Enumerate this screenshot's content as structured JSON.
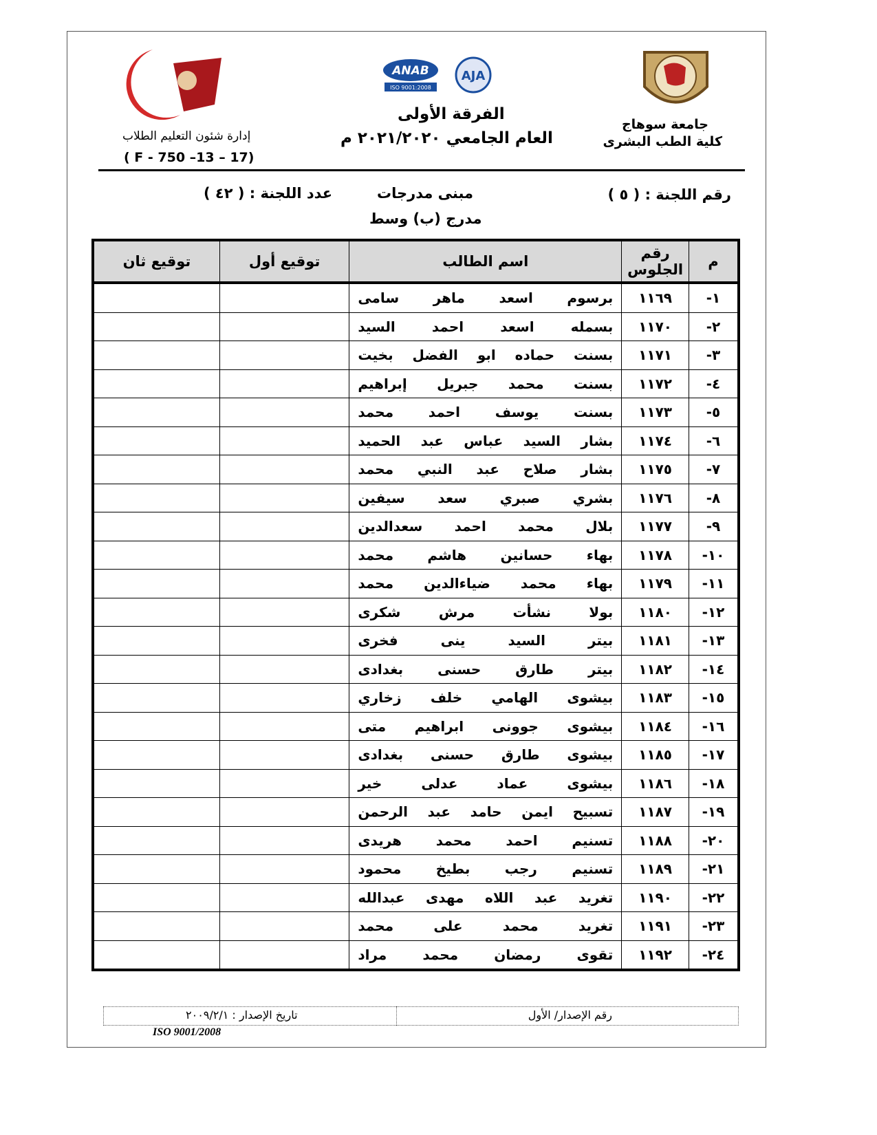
{
  "header": {
    "university": "جامعة سوهاج",
    "faculty": "كلية الطب البشرى",
    "department": "إدارة شئون التعليم الطلاب",
    "form_code": "( F - 750 –13 – 17)",
    "year_level": "الفرقة الأولى",
    "academic_year": "العام الجامعي ٢٠٢١/٢٠٢٠ م",
    "logos": {
      "anab": "ANAB",
      "anab_sub": "ISO 9001:2008",
      "aja": "AJA"
    }
  },
  "committee": {
    "number": "رقم اللجنة : ( ٥ )",
    "building": "مبنى مدرجات",
    "hall": "مدرج (ب) وسط",
    "count": "عدد اللجنة : ( ٤٢ )"
  },
  "table": {
    "columns": [
      "م",
      "رقم الجلوس",
      "اسم الطالب",
      "توقيع أول",
      "توقيع ثان"
    ],
    "rows": [
      [
        "١-",
        "١١٦٩",
        "برسوم اسعد ماهر سامى"
      ],
      [
        "٢-",
        "١١٧٠",
        "بسمله اسعد احمد السيد"
      ],
      [
        "٣-",
        "١١٧١",
        "بسنت حماده ابو الفضل بخيت"
      ],
      [
        "٤-",
        "١١٧٢",
        "بسنت محمد جبريل إبراهيم"
      ],
      [
        "٥-",
        "١١٧٣",
        "بسنت يوسف احمد محمد"
      ],
      [
        "٦-",
        "١١٧٤",
        "بشار السيد عباس عبد الحميد"
      ],
      [
        "٧-",
        "١١٧٥",
        "بشار صلاح عبد النبي محمد"
      ],
      [
        "٨-",
        "١١٧٦",
        "بشري صبري سعد سيفين"
      ],
      [
        "٩-",
        "١١٧٧",
        "بلال محمد احمد سعدالدين"
      ],
      [
        "١٠-",
        "١١٧٨",
        "بهاء حسانين هاشم محمد"
      ],
      [
        "١١-",
        "١١٧٩",
        "بهاء محمد ضياءالدين محمد"
      ],
      [
        "١٢-",
        "١١٨٠",
        "بولا نشأت مرش شكرى"
      ],
      [
        "١٣-",
        "١١٨١",
        "بيتر السيد ينى فخرى"
      ],
      [
        "١٤-",
        "١١٨٢",
        "بيتر طارق حسنى بغدادى"
      ],
      [
        "١٥-",
        "١١٨٣",
        "بيشوى الهامي خلف زخاري"
      ],
      [
        "١٦-",
        "١١٨٤",
        "بيشوى جوونى ابراهيم متى"
      ],
      [
        "١٧-",
        "١١٨٥",
        "بيشوى طارق حسنى بغدادى"
      ],
      [
        "١٨-",
        "١١٨٦",
        "بيشوى عماد عدلى خير"
      ],
      [
        "١٩-",
        "١١٨٧",
        "تسبيح ايمن حامد عبد الرحمن"
      ],
      [
        "٢٠-",
        "١١٨٨",
        "تسنيم احمد محمد هريدى"
      ],
      [
        "٢١-",
        "١١٨٩",
        "تسنيم رجب بطيخ محمود"
      ],
      [
        "٢٢-",
        "١١٩٠",
        "تغريد عبد اللاه مهدى عبدالله"
      ],
      [
        "٢٣-",
        "١١٩١",
        "تغريد محمد على محمد"
      ],
      [
        "٢٤-",
        "١١٩٢",
        "تقوى رمضان محمد مراد"
      ]
    ]
  },
  "footer": {
    "issue_number": "رقم الإصدار/ الأول",
    "issue_date": "تاريخ الإصدار : ٢٠٠٩/٢/١",
    "iso": "ISO 9001/2008"
  }
}
